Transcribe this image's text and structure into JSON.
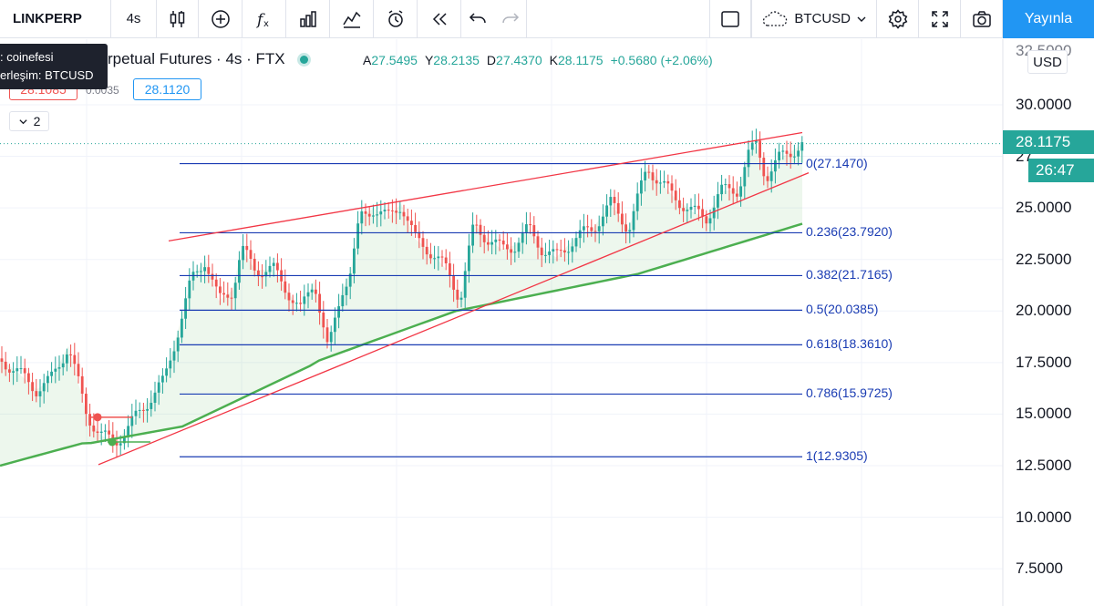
{
  "toolbar": {
    "symbol": "LINKPERP",
    "interval": "4s",
    "icons": [
      "candles-icon",
      "add-indicator-icon",
      "fx-icon",
      "bars-icon",
      "compare-icon",
      "alert-icon",
      "replay-icon",
      "undo-icon",
      "redo-icon"
    ],
    "layout_icon": "square-icon",
    "compare_symbol": "BTCUSD",
    "settings_icon": "gear-icon",
    "fullscreen_icon": "fullscreen-icon",
    "snapshot_icon": "camera-icon",
    "publish_label": "Yayınla"
  },
  "legend": {
    "title": "rpetual Futures · 4s · FTX",
    "ohlc": {
      "o_key": "A",
      "o": "27.5495",
      "h_key": "Y",
      "h": "28.2135",
      "l_key": "D",
      "l": "27.4370",
      "c_key": "K",
      "c": "28.1175",
      "change": "+0.5680 (+2.06%)"
    },
    "status_color": "#26a69a"
  },
  "trade": {
    "bid": "28.1085",
    "spread": "0.0035",
    "ask": "28.1120"
  },
  "collapse": {
    "count": "2"
  },
  "tooltip": {
    "line1": ": coinefesi",
    "line2": "erleşim: BTCUSD"
  },
  "price_axis": {
    "currency": "USD",
    "labels": [
      "32.5000",
      "30.0000",
      "25.0000",
      "22.5000",
      "20.0000",
      "17.5000",
      "15.0000",
      "12.5000",
      "10.0000",
      "7.5000"
    ],
    "partial_label": "27",
    "last_price": "28.1175",
    "countdown": "26:47"
  },
  "fib_levels": [
    {
      "level": "0",
      "value": "27.1470"
    },
    {
      "level": "0.236",
      "value": "23.7920"
    },
    {
      "level": "0.382",
      "value": "21.7165"
    },
    {
      "level": "0.5",
      "value": "20.0385"
    },
    {
      "level": "0.618",
      "value": "18.3610"
    },
    {
      "level": "0.786",
      "value": "15.9725"
    },
    {
      "level": "1",
      "value": "12.9305"
    }
  ],
  "colors": {
    "up": "#26a69a",
    "down": "#ef5350",
    "fib": "#1a3cb3",
    "trend": "#f23645",
    "ma": "#4caf50",
    "accent": "#2196f3"
  }
}
